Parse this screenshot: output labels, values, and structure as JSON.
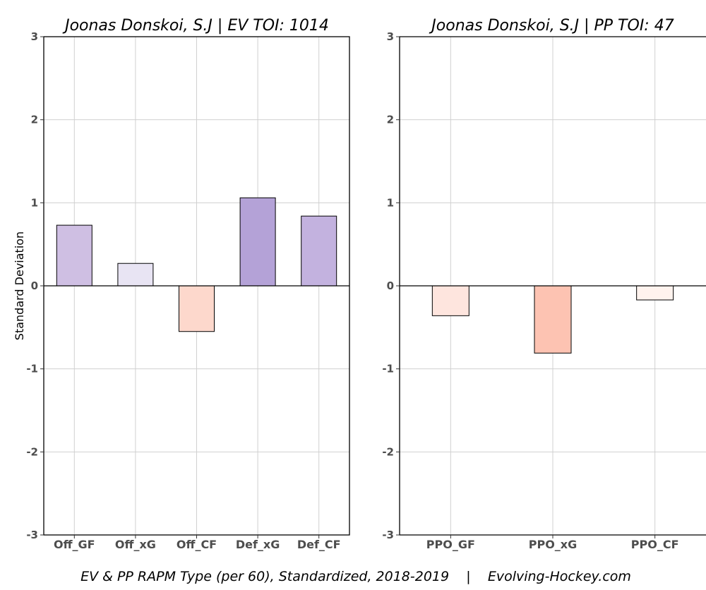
{
  "chart_data": [
    {
      "type": "bar",
      "title": "Joonas Donskoi, S.J  |  EV TOI: 1014",
      "ylabel": "Standard Deviation",
      "ylim": [
        -3,
        3
      ],
      "yticks": [
        -3,
        -2,
        -1,
        0,
        1,
        2,
        3
      ],
      "grid": true,
      "categories": [
        "Off_GF",
        "Off_xG",
        "Off_CF",
        "Def_xG",
        "Def_CF"
      ],
      "values": [
        0.73,
        0.27,
        -0.55,
        1.06,
        0.84
      ],
      "colors": [
        "#cfbfe3",
        "#e8e4f3",
        "#fdd8cc",
        "#b4a2d7",
        "#c3b2df"
      ]
    },
    {
      "type": "bar",
      "title": "Joonas Donskoi, S.J  |  PP TOI: 47",
      "ylabel": "",
      "ylim": [
        -3,
        3
      ],
      "yticks": [
        -3,
        -2,
        -1,
        0,
        1,
        2,
        3
      ],
      "grid": true,
      "categories": [
        "PPO_GF",
        "PPO_xG",
        "PPO_CF"
      ],
      "values": [
        -0.36,
        -0.81,
        -0.17
      ],
      "colors": [
        "#fee5de",
        "#fdc3b2",
        "#fff3ee"
      ]
    }
  ],
  "caption": "EV & PP RAPM Type (per 60), Standardized, 2018-2019    |    Evolving-Hockey.com"
}
